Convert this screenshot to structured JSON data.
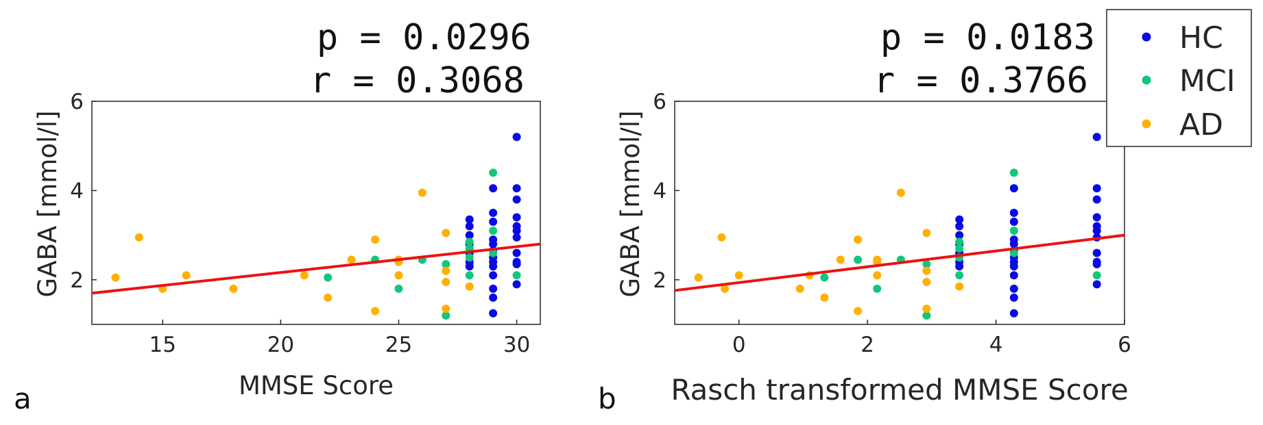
{
  "legend": {
    "placement": "top-right",
    "entries": [
      {
        "label": "HC",
        "color": "#0a0ae6"
      },
      {
        "label": "MCI",
        "color": "#12c77c"
      },
      {
        "label": "AD",
        "color": "#ffb000"
      }
    ]
  },
  "fit_color": "#ee1111",
  "chart_data": [
    {
      "type": "scatter",
      "panel_label": "a",
      "stats": {
        "p": "p = 0.0296",
        "r": "r = 0.3068"
      },
      "xlabel": "MMSE Score",
      "ylabel": "GABA [mmol/l]",
      "xlim": [
        12,
        31
      ],
      "ylim": [
        1,
        6
      ],
      "xticks": [
        15,
        20,
        25,
        30
      ],
      "yticks": [
        2,
        4,
        6
      ],
      "fit_line": {
        "x": [
          12,
          31
        ],
        "y": [
          1.7,
          2.8
        ]
      },
      "series": [
        {
          "name": "HC",
          "points": [
            [
              28,
              3.35
            ],
            [
              28,
              3.2
            ],
            [
              28,
              3.0
            ],
            [
              28,
              2.8
            ],
            [
              28,
              2.6
            ],
            [
              28,
              2.4
            ],
            [
              28,
              2.3
            ],
            [
              29,
              4.05
            ],
            [
              29,
              3.5
            ],
            [
              29,
              3.3
            ],
            [
              29,
              2.9
            ],
            [
              29,
              2.8
            ],
            [
              29,
              2.65
            ],
            [
              29,
              2.5
            ],
            [
              29,
              2.4
            ],
            [
              29,
              2.3
            ],
            [
              29,
              2.1
            ],
            [
              29,
              1.8
            ],
            [
              29,
              1.6
            ],
            [
              29,
              1.25
            ],
            [
              30,
              5.2
            ],
            [
              30,
              4.05
            ],
            [
              30,
              3.8
            ],
            [
              30,
              3.4
            ],
            [
              30,
              3.2
            ],
            [
              30,
              3.1
            ],
            [
              30,
              2.95
            ],
            [
              30,
              2.6
            ],
            [
              30,
              2.4
            ],
            [
              30,
              2.35
            ],
            [
              30,
              1.9
            ]
          ]
        },
        {
          "name": "MCI",
          "points": [
            [
              22,
              2.05
            ],
            [
              24,
              2.45
            ],
            [
              25,
              1.8
            ],
            [
              26,
              2.45
            ],
            [
              27,
              2.35
            ],
            [
              27,
              1.2
            ],
            [
              28,
              2.85
            ],
            [
              28,
              2.7
            ],
            [
              28,
              2.5
            ],
            [
              28,
              2.1
            ],
            [
              29,
              4.4
            ],
            [
              29,
              3.1
            ],
            [
              29,
              2.6
            ],
            [
              30,
              2.1
            ]
          ]
        },
        {
          "name": "AD",
          "points": [
            [
              13,
              2.05
            ],
            [
              14,
              2.95
            ],
            [
              15,
              1.8
            ],
            [
              16,
              2.1
            ],
            [
              18,
              1.8
            ],
            [
              21,
              2.1
            ],
            [
              22,
              1.6
            ],
            [
              23,
              2.45
            ],
            [
              24,
              2.9
            ],
            [
              24,
              1.3
            ],
            [
              25,
              2.45
            ],
            [
              25,
              2.4
            ],
            [
              25,
              2.1
            ],
            [
              26,
              3.95
            ],
            [
              27,
              3.05
            ],
            [
              27,
              2.2
            ],
            [
              27,
              1.95
            ],
            [
              27,
              1.35
            ],
            [
              28,
              1.85
            ]
          ]
        }
      ]
    },
    {
      "type": "scatter",
      "panel_label": "b",
      "stats": {
        "p": "p = 0.0183",
        "r": "r = 0.3766"
      },
      "xlabel": "Rasch transformed MMSE Score",
      "ylabel": "GABA [mmol/l]",
      "xlim": [
        -1,
        6
      ],
      "ylim": [
        1,
        6
      ],
      "xticks": [
        0,
        2,
        4,
        6
      ],
      "yticks": [
        2,
        4,
        6
      ],
      "fit_line": {
        "x": [
          -1,
          6
        ],
        "y": [
          1.76,
          3.0
        ]
      },
      "series": [
        {
          "name": "HC",
          "points": [
            [
              3.43,
              3.35
            ],
            [
              3.43,
              3.2
            ],
            [
              3.43,
              3.0
            ],
            [
              3.43,
              2.8
            ],
            [
              3.43,
              2.6
            ],
            [
              3.43,
              2.4
            ],
            [
              3.43,
              2.3
            ],
            [
              4.28,
              4.05
            ],
            [
              4.28,
              3.5
            ],
            [
              4.28,
              3.3
            ],
            [
              4.28,
              2.9
            ],
            [
              4.28,
              2.8
            ],
            [
              4.28,
              2.65
            ],
            [
              4.28,
              2.5
            ],
            [
              4.28,
              2.4
            ],
            [
              4.28,
              2.3
            ],
            [
              4.28,
              2.1
            ],
            [
              4.28,
              1.8
            ],
            [
              4.28,
              1.6
            ],
            [
              4.28,
              1.25
            ],
            [
              5.57,
              5.2
            ],
            [
              5.57,
              4.05
            ],
            [
              5.57,
              3.8
            ],
            [
              5.57,
              3.4
            ],
            [
              5.57,
              3.2
            ],
            [
              5.57,
              3.1
            ],
            [
              5.57,
              2.95
            ],
            [
              5.57,
              2.6
            ],
            [
              5.57,
              2.4
            ],
            [
              5.57,
              2.35
            ],
            [
              5.57,
              1.9
            ]
          ]
        },
        {
          "name": "MCI",
          "points": [
            [
              1.33,
              2.05
            ],
            [
              1.85,
              2.45
            ],
            [
              2.15,
              1.8
            ],
            [
              2.52,
              2.45
            ],
            [
              2.92,
              2.35
            ],
            [
              2.92,
              1.2
            ],
            [
              3.43,
              2.85
            ],
            [
              3.43,
              2.7
            ],
            [
              3.43,
              2.5
            ],
            [
              3.43,
              2.1
            ],
            [
              4.28,
              4.4
            ],
            [
              4.28,
              3.1
            ],
            [
              4.28,
              2.6
            ],
            [
              5.57,
              2.1
            ]
          ]
        },
        {
          "name": "AD",
          "points": [
            [
              -0.63,
              2.05
            ],
            [
              -0.27,
              2.95
            ],
            [
              -0.22,
              1.8
            ],
            [
              0.0,
              2.1
            ],
            [
              0.95,
              1.8
            ],
            [
              1.1,
              2.1
            ],
            [
              1.33,
              1.6
            ],
            [
              1.58,
              2.45
            ],
            [
              1.85,
              2.9
            ],
            [
              1.85,
              1.3
            ],
            [
              2.15,
              2.45
            ],
            [
              2.15,
              2.4
            ],
            [
              2.15,
              2.1
            ],
            [
              2.52,
              3.95
            ],
            [
              2.92,
              3.05
            ],
            [
              2.92,
              2.2
            ],
            [
              2.92,
              1.95
            ],
            [
              2.92,
              1.35
            ],
            [
              3.43,
              1.85
            ]
          ]
        }
      ]
    }
  ]
}
